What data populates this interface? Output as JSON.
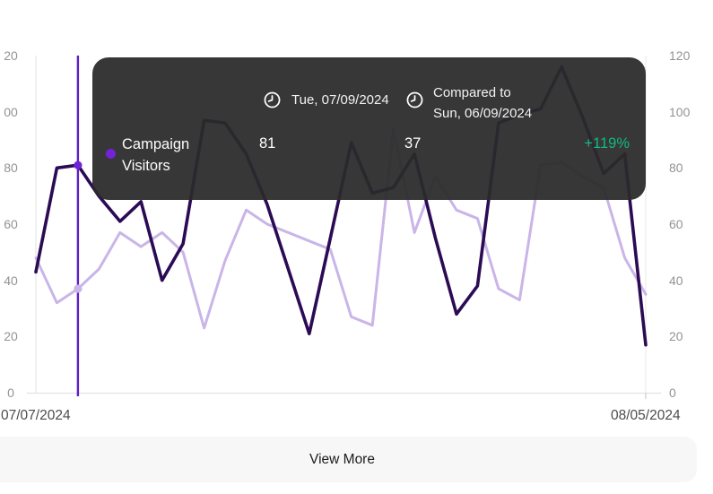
{
  "tooltip": {
    "date": "Tue, 07/09/2024",
    "compared_prefix": "Compared to",
    "compared_date": "Sun, 06/09/2024",
    "series_label_line1": "Campaign",
    "series_label_line2": "Visitors",
    "current_value": "81",
    "compared_value": "37",
    "change_percent": "+119%"
  },
  "axes": {
    "y_left_display": [
      "20",
      "00",
      "80",
      "60",
      "40",
      "20",
      "0"
    ],
    "y_right_display": [
      "120",
      "100",
      "80",
      "60",
      "40",
      "20",
      "0"
    ],
    "x_start_label": "07/07/2024",
    "x_end_label": "08/05/2024"
  },
  "footer": {
    "view_more_label": "View More"
  },
  "colors": {
    "current_line": "#2c0b55",
    "compared_line": "#c9b5e8",
    "indicator_line": "#5e1ec6",
    "indicator_dot_current": "#7223d8",
    "indicator_dot_compared": "#c9b5e8",
    "change_positive": "#10b981",
    "tooltip_bg": "rgba(43,43,43,0.94)",
    "axis_text": "#939393",
    "grid_line": "#e7e7e7"
  },
  "chart_data": {
    "type": "line",
    "title": "Campaign Visitors",
    "x_start": "07/07/2024",
    "x_end": "08/05/2024",
    "ylim": [
      0,
      120
    ],
    "yticks": [
      0,
      20,
      40,
      60,
      80,
      100,
      120
    ],
    "grid": "vertical bounds only, no horizontal gridlines",
    "legend_position": "none (tooltip only)",
    "series": [
      {
        "name": "Campaign Visitors",
        "color": "#2c0b55",
        "values": [
          43,
          80,
          81,
          70,
          61,
          68,
          40,
          53,
          97,
          96,
          85,
          67,
          44,
          21,
          55,
          89,
          71,
          73,
          85,
          55,
          28,
          38,
          96,
          99,
          101,
          116,
          98,
          78,
          85,
          17
        ]
      },
      {
        "name": "Campaign Visitors (compared period)",
        "color": "#c9b5e8",
        "values": [
          48,
          32,
          37,
          44,
          57,
          52,
          57,
          50,
          23,
          47,
          65,
          60,
          57,
          54,
          51,
          27,
          24,
          94,
          57,
          77,
          65,
          62,
          37,
          33,
          81,
          82,
          77,
          73,
          48,
          35
        ]
      }
    ],
    "highlight": {
      "index": 2,
      "date": "Tue, 07/09/2024",
      "compared_date": "Sun, 06/09/2024",
      "current": 81,
      "compared": 37,
      "change": "+119%"
    }
  }
}
